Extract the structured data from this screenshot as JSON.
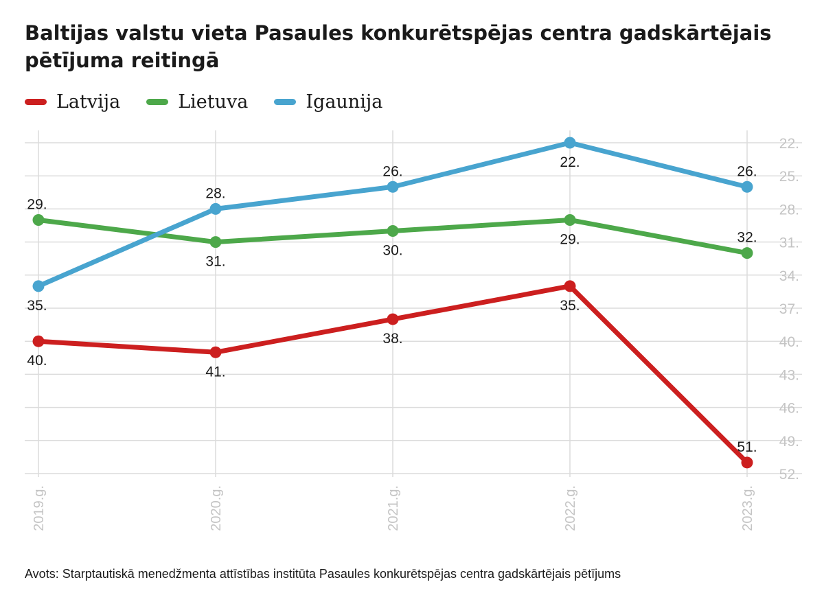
{
  "title": "Baltijas valstu vieta Pasaules konkurētspējas centra gadskārtējais pētījuma reitingā",
  "source": "Avots: Starptautiskā menedžmenta attīstības institūta Pasaules konkurētspējas centra gadskārtējais pētījums",
  "colors": {
    "latvija": "#cc1f1f",
    "lietuva": "#4da84a",
    "igaunija": "#48a4cf",
    "grid": "#dcdcdc",
    "tick": "#c4c4c4"
  },
  "chart_data": {
    "type": "line",
    "x": [
      "2019.g.",
      "2020.g.",
      "2021.g.",
      "2022.g.",
      "2023.g."
    ],
    "y_ticks": [
      "22.",
      "25.",
      "28.",
      "31.",
      "34.",
      "37.",
      "40.",
      "43.",
      "46.",
      "49.",
      "52."
    ],
    "ylim": [
      22,
      52
    ],
    "y_reversed": true,
    "grid": true,
    "legend_position": "top-left",
    "series": [
      {
        "name": "Latvija",
        "color": "#cc1f1f",
        "values": [
          40,
          41,
          38,
          35,
          51
        ],
        "labels": [
          "40.",
          "41.",
          "38.",
          "35.",
          "51."
        ],
        "label_pos": [
          "below",
          "below",
          "below",
          "below",
          "above"
        ]
      },
      {
        "name": "Lietuva",
        "color": "#4da84a",
        "values": [
          29,
          31,
          30,
          29,
          32
        ],
        "labels": [
          "29.",
          "31.",
          "30.",
          "29.",
          "32."
        ],
        "label_pos": [
          "above",
          "below",
          "below",
          "below",
          "above"
        ]
      },
      {
        "name": "Igaunija",
        "color": "#48a4cf",
        "values": [
          35,
          28,
          26,
          22,
          26
        ],
        "labels": [
          "35.",
          "28.",
          "26.",
          "22.",
          "26."
        ],
        "label_pos": [
          "below",
          "above",
          "above",
          "below",
          "above"
        ]
      }
    ]
  }
}
